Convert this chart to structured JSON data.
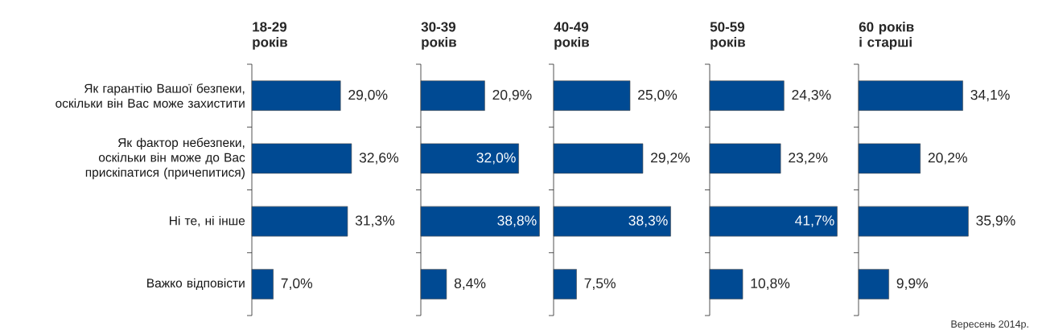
{
  "chart_data": [
    {
      "type": "bar",
      "orientation": "horizontal",
      "title": "18-29 років",
      "categories": [
        "Як гарантію Вашої безпеки, оскільки він Вас може захистити",
        "Як фактор небезпеки, оскільки він може до Вас прискіпатися (причепитися)",
        "Ні те, ні інше",
        "Важко відповісти"
      ],
      "values": [
        29.0,
        32.6,
        31.3,
        7.0
      ],
      "value_labels": [
        "29,0%",
        "32,6%",
        "31,3%",
        "7,0%"
      ],
      "color": "#004a93",
      "tick_labels": "y"
    },
    {
      "type": "bar",
      "orientation": "horizontal",
      "title": "30-39 років",
      "categories": [
        null,
        null,
        null,
        null
      ],
      "values": [
        20.9,
        32.0,
        38.8,
        8.4
      ],
      "value_labels": [
        "20,9%",
        "32,0%",
        "38,8%",
        "8,4%"
      ],
      "color": "#004a93"
    },
    {
      "type": "bar",
      "orientation": "horizontal",
      "title": "40-49 років",
      "categories": [
        null,
        null,
        null,
        null
      ],
      "values": [
        25.0,
        29.2,
        38.3,
        7.5
      ],
      "value_labels": [
        "25,0%",
        "29,2%",
        "38,3%",
        "7,5%"
      ],
      "color": "#004a93"
    },
    {
      "type": "bar",
      "orientation": "horizontal",
      "title": "50-59 років",
      "categories": [
        null,
        null,
        null,
        null
      ],
      "values": [
        24.3,
        23.2,
        41.7,
        10.8
      ],
      "value_labels": [
        "24,3%",
        "23,2%",
        "41,7%",
        "10,8%"
      ],
      "color": "#004a93"
    },
    {
      "type": "bar",
      "orientation": "horizontal",
      "title": "60 років і старші",
      "categories": [
        null,
        null,
        null,
        null
      ],
      "values": [
        34.1,
        20.2,
        35.9,
        9.9
      ],
      "value_labels": [
        "34,1%",
        "20,2%",
        "35,9%",
        "9,9%"
      ],
      "color": "#004a93",
      "annotations": [
        "Вересень 2014р."
      ]
    }
  ]
}
